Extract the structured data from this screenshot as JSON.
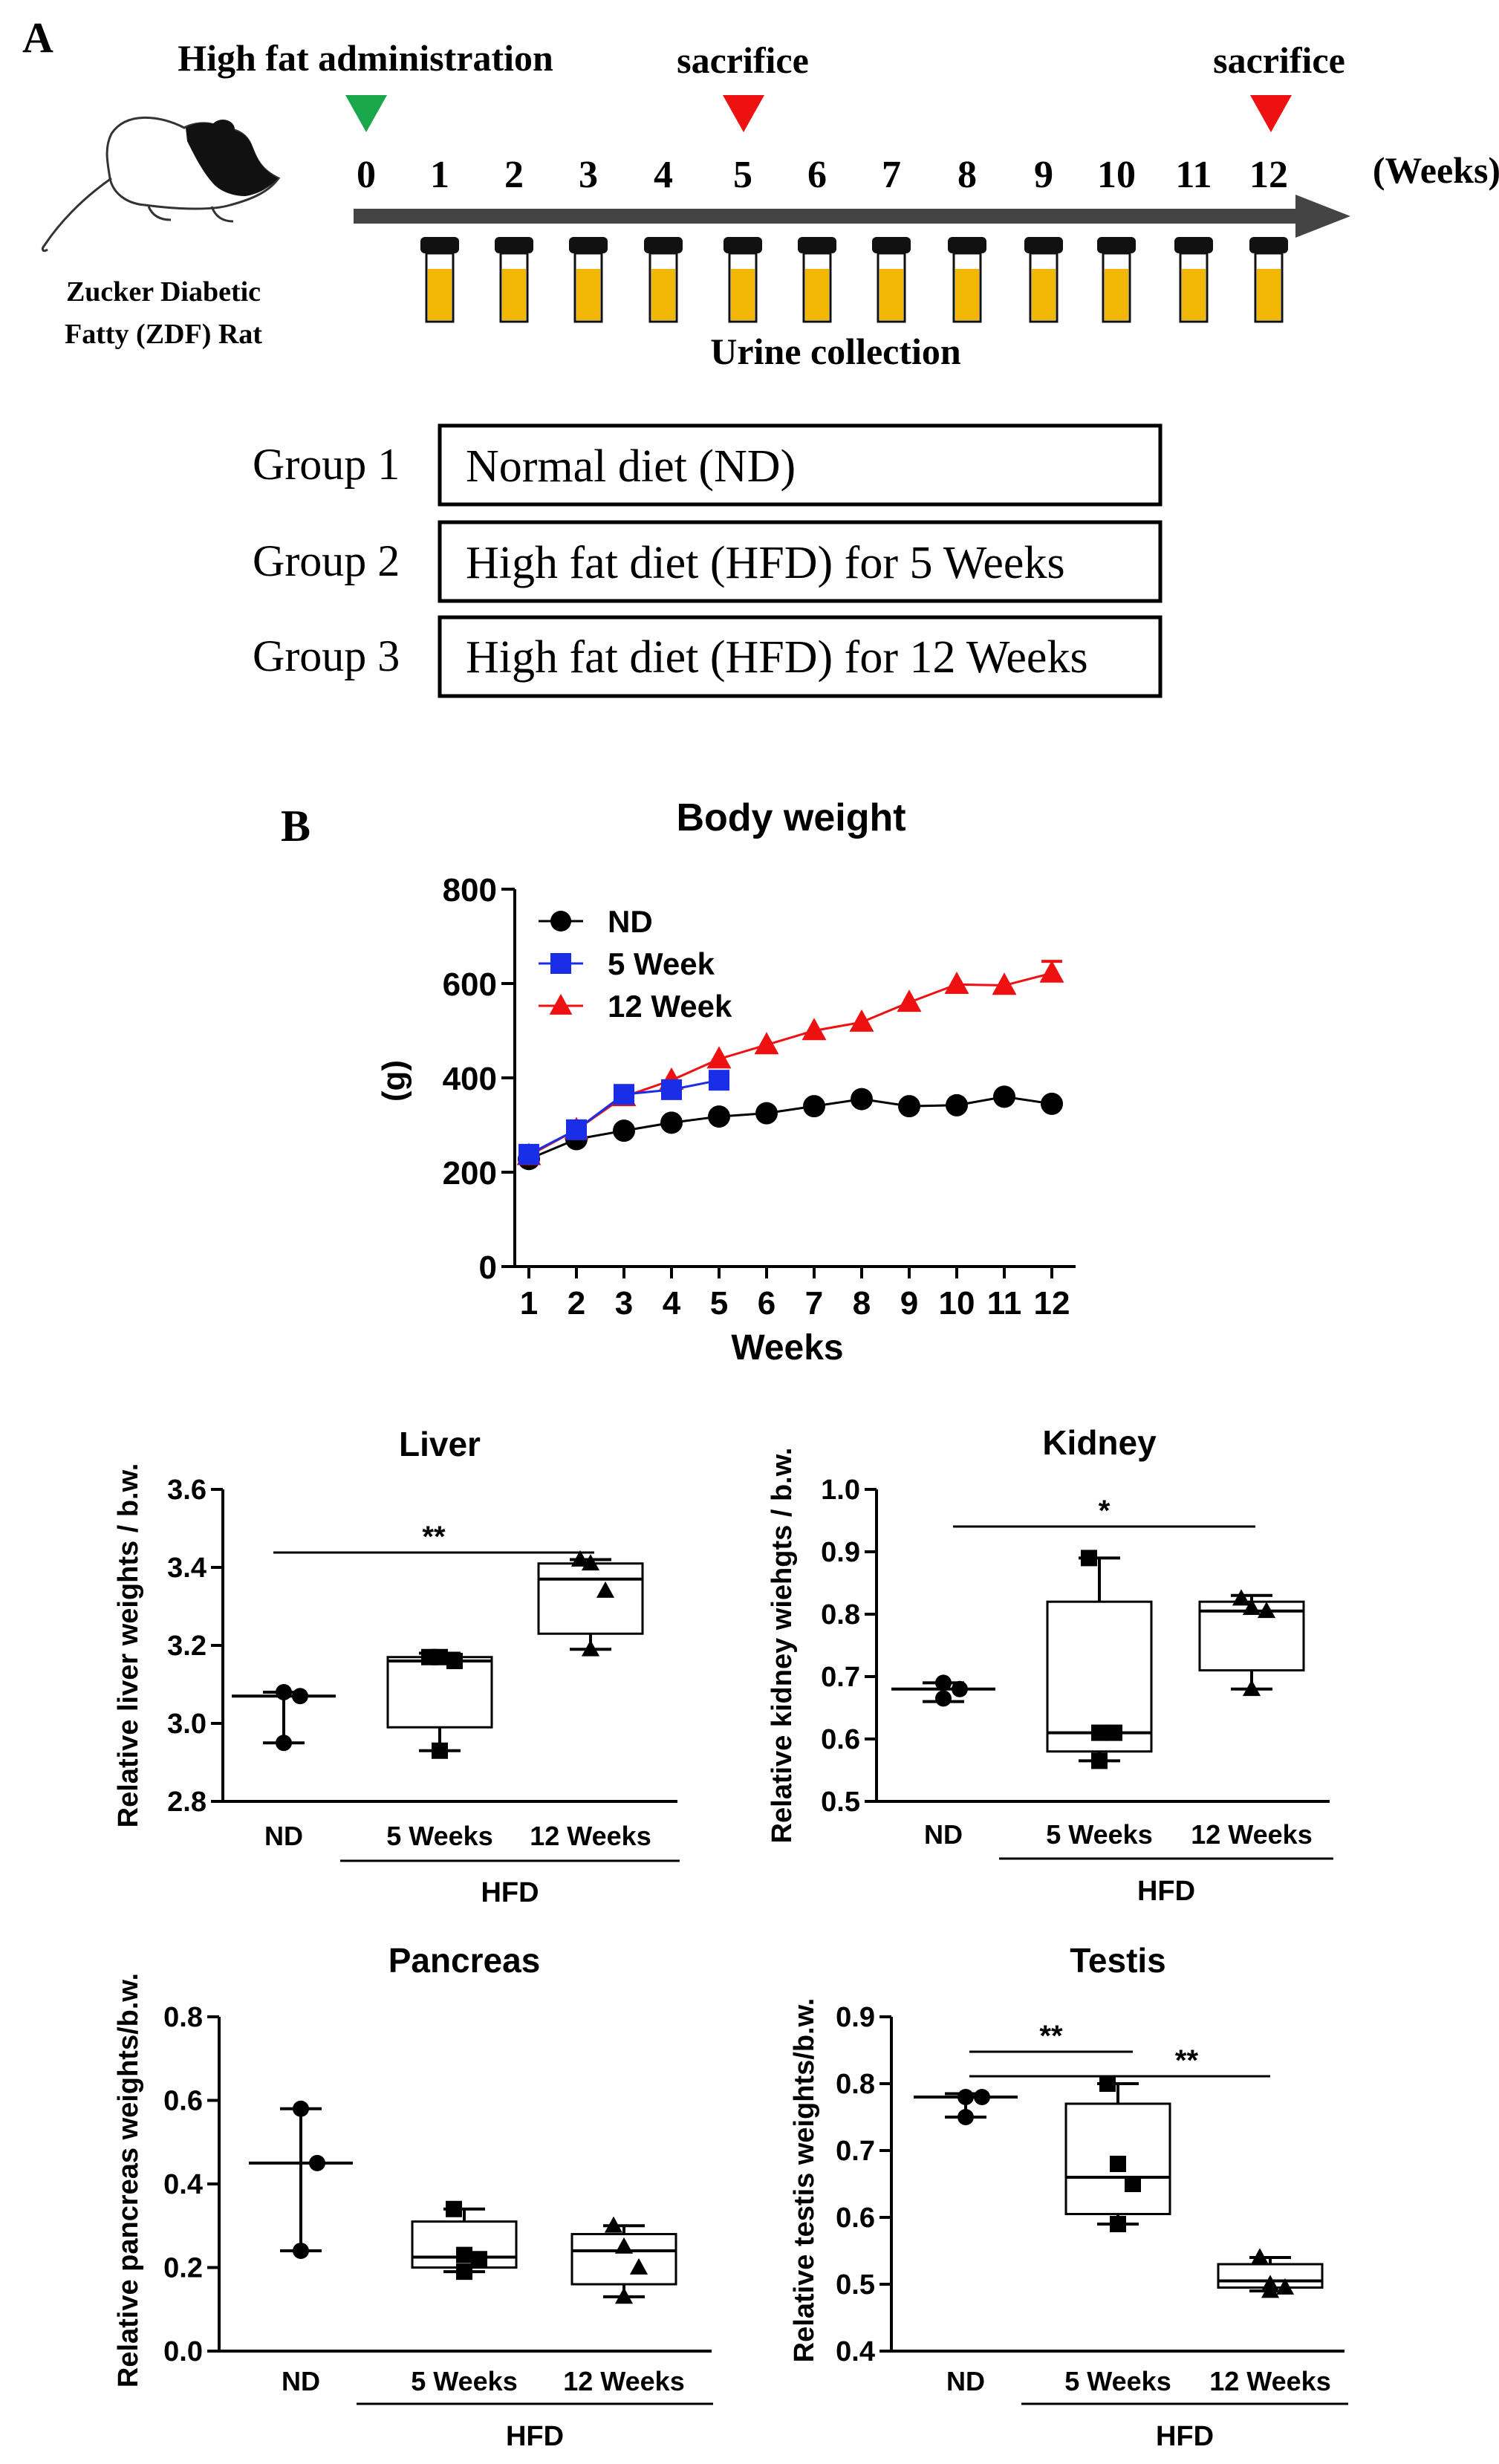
{
  "panelA": {
    "label": "A",
    "admin_label": "High fat administration",
    "sacrifice_labels": [
      "sacrifice",
      "sacrifice"
    ],
    "weeks": [
      "0",
      "1",
      "2",
      "3",
      "4",
      "5",
      "6",
      "7",
      "8",
      "9",
      "10",
      "11",
      "12"
    ],
    "weeks_unit": "(Weeks)",
    "rat_name_line1": "Zucker Diabetic",
    "rat_name_line2": "Fatty (ZDF) Rat",
    "urine_label": "Urine collection",
    "groups": [
      {
        "name": "Group  1",
        "desc": "Normal diet (ND)"
      },
      {
        "name": "Group  2",
        "desc": "High fat diet (HFD) for 5 Weeks"
      },
      {
        "name": "Group  3",
        "desc": "High fat diet (HFD) for 12 Weeks"
      }
    ],
    "colors": {
      "admin_marker": "#1aa64a",
      "sacrifice_marker": "#ee1111",
      "tube_fill": "#f2b705",
      "arrow": "#444444"
    }
  },
  "panelB_label": "B",
  "chart_data": [
    {
      "type": "line",
      "title": "Body weight",
      "xlabel": "Weeks",
      "ylabel": "(g)",
      "x": [
        1,
        2,
        3,
        4,
        5,
        6,
        7,
        8,
        9,
        10,
        11,
        12
      ],
      "ylim": [
        0,
        800
      ],
      "yticks": [
        0,
        200,
        400,
        600,
        800
      ],
      "series": [
        {
          "name": "ND",
          "marker": "circle",
          "color": "#000000",
          "x": [
            1,
            2,
            3,
            4,
            5,
            6,
            7,
            8,
            9,
            10,
            11,
            12
          ],
          "values": [
            228,
            270,
            288,
            305,
            318,
            325,
            340,
            355,
            340,
            342,
            360,
            345
          ]
        },
        {
          "name": "5 Week",
          "marker": "square",
          "color": "#1a2ee8",
          "x": [
            1,
            2,
            3,
            4,
            5
          ],
          "values": [
            238,
            290,
            365,
            375,
            395
          ]
        },
        {
          "name": "12 Week",
          "marker": "triangle",
          "color": "#ee1111",
          "x": [
            1,
            2,
            3,
            4,
            5,
            6,
            7,
            8,
            9,
            10,
            11,
            12
          ],
          "values": [
            235,
            290,
            360,
            395,
            440,
            470,
            500,
            518,
            560,
            598,
            596,
            622
          ],
          "error_last": 25
        }
      ]
    },
    {
      "type": "box",
      "title": "Liver",
      "ylabel": "Relative liver weights / b.w.",
      "ylim": [
        2.8,
        3.6
      ],
      "yticks": [
        "2.8",
        "3.0",
        "3.2",
        "3.4",
        "3.6"
      ],
      "categories": [
        "ND",
        "5 Weeks",
        "12 Weeks"
      ],
      "group_label": "HFD",
      "groups": [
        {
          "min": 2.95,
          "q1": 3.07,
          "median": 3.07,
          "q3": 3.07,
          "max": 3.08,
          "points": [
            3.08,
            3.07,
            2.95
          ],
          "marker": "circle"
        },
        {
          "min": 2.93,
          "q1": 2.99,
          "median": 3.16,
          "q3": 3.17,
          "max": 3.18,
          "points": [
            3.17,
            3.17,
            3.16,
            2.93
          ],
          "marker": "square"
        },
        {
          "min": 3.19,
          "q1": 3.23,
          "median": 3.37,
          "q3": 3.41,
          "max": 3.42,
          "points": [
            3.42,
            3.41,
            3.34,
            3.19
          ],
          "marker": "triangle"
        }
      ],
      "significance": [
        {
          "from": 0,
          "to": 2,
          "label": "**"
        }
      ]
    },
    {
      "type": "box",
      "title": "Kidney",
      "ylabel": "Relative kidney wiehgts / b.w.",
      "ylim": [
        0.5,
        1.0
      ],
      "yticks": [
        "0.5",
        "0.6",
        "0.7",
        "0.8",
        "0.9",
        "1.0"
      ],
      "categories": [
        "ND",
        "5 Weeks",
        "12 Weeks"
      ],
      "group_label": "HFD",
      "groups": [
        {
          "min": 0.66,
          "q1": 0.68,
          "median": 0.68,
          "q3": 0.68,
          "max": 0.69,
          "points": [
            0.69,
            0.68,
            0.665
          ],
          "marker": "circle"
        },
        {
          "min": 0.565,
          "q1": 0.58,
          "median": 0.61,
          "q3": 0.82,
          "max": 0.89,
          "points": [
            0.89,
            0.61,
            0.61,
            0.565
          ],
          "marker": "square"
        },
        {
          "min": 0.68,
          "q1": 0.71,
          "median": 0.805,
          "q3": 0.82,
          "max": 0.83,
          "points": [
            0.825,
            0.81,
            0.805,
            0.68
          ],
          "marker": "triangle"
        }
      ],
      "significance": [
        {
          "from": 0,
          "to": 2,
          "label": "*"
        }
      ]
    },
    {
      "type": "box",
      "title": "Pancreas",
      "ylabel": "Relative pancreas weights/b.w.",
      "ylim": [
        0.0,
        0.8
      ],
      "yticks": [
        "0.0",
        "0.2",
        "0.4",
        "0.6",
        "0.8"
      ],
      "categories": [
        "ND",
        "5 Weeks",
        "12 Weeks"
      ],
      "group_label": "HFD",
      "groups": [
        {
          "min": 0.24,
          "q1": 0.45,
          "median": 0.45,
          "q3": 0.45,
          "max": 0.58,
          "points": [
            0.58,
            0.45,
            0.24
          ],
          "marker": "circle"
        },
        {
          "min": 0.19,
          "q1": 0.2,
          "median": 0.225,
          "q3": 0.31,
          "max": 0.34,
          "points": [
            0.34,
            0.23,
            0.22,
            0.19
          ],
          "marker": "square"
        },
        {
          "min": 0.13,
          "q1": 0.16,
          "median": 0.24,
          "q3": 0.28,
          "max": 0.3,
          "points": [
            0.3,
            0.25,
            0.2,
            0.13
          ],
          "marker": "triangle"
        }
      ],
      "significance": []
    },
    {
      "type": "box",
      "title": "Testis",
      "ylabel": "Relative testis weights/b.w.",
      "ylim": [
        0.4,
        0.9
      ],
      "yticks": [
        "0.4",
        "0.5",
        "0.6",
        "0.7",
        "0.8",
        "0.9"
      ],
      "categories": [
        "ND",
        "5 Weeks",
        "12 Weeks"
      ],
      "group_label": "HFD",
      "groups": [
        {
          "min": 0.75,
          "q1": 0.78,
          "median": 0.78,
          "q3": 0.78,
          "max": 0.785,
          "points": [
            0.78,
            0.78,
            0.75
          ],
          "marker": "circle"
        },
        {
          "min": 0.59,
          "q1": 0.605,
          "median": 0.66,
          "q3": 0.77,
          "max": 0.8,
          "points": [
            0.8,
            0.68,
            0.65,
            0.59
          ],
          "marker": "square"
        },
        {
          "min": 0.49,
          "q1": 0.495,
          "median": 0.505,
          "q3": 0.53,
          "max": 0.54,
          "points": [
            0.54,
            0.5,
            0.495,
            0.49
          ],
          "marker": "triangle"
        }
      ],
      "significance": [
        {
          "from": 0,
          "to": 1,
          "label": "**"
        },
        {
          "from": 0,
          "to": 2,
          "label": "**"
        }
      ]
    }
  ]
}
